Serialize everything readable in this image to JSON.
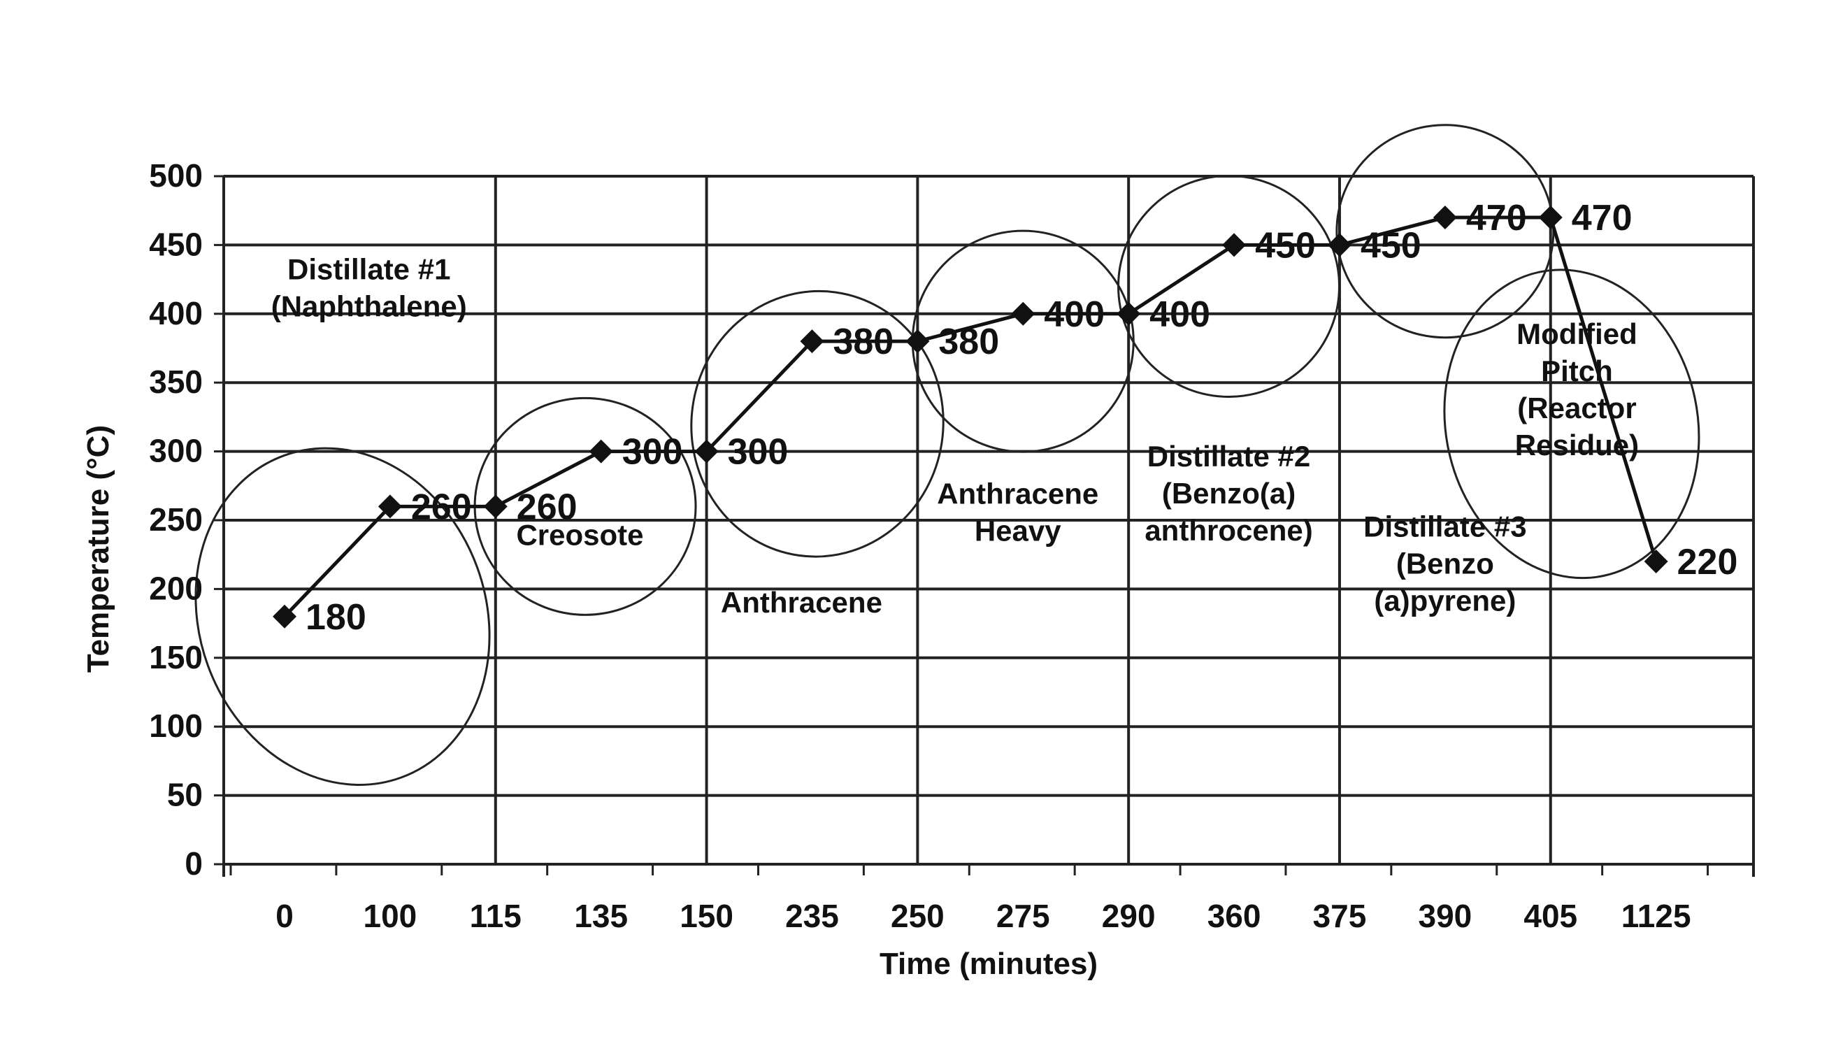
{
  "chart_data": {
    "type": "line",
    "title": "",
    "xlabel": "Time (minutes)",
    "ylabel": "Temperature (°C)",
    "ylim": [
      0,
      500
    ],
    "y_ticks": [
      "0",
      "50",
      "100",
      "150",
      "200",
      "250",
      "300",
      "350",
      "400",
      "450",
      "500"
    ],
    "grid": "horizontal and vertical lines",
    "legend": "none",
    "categories": [
      "0",
      "100",
      "115",
      "135",
      "150",
      "235",
      "250",
      "275",
      "290",
      "360",
      "375",
      "390",
      "405",
      "1125"
    ],
    "series": [
      {
        "values": [
          180,
          260,
          260,
          300,
          300,
          380,
          380,
          400,
          400,
          450,
          450,
          470,
          470,
          220
        ],
        "data_labels": [
          "180",
          "260",
          "260",
          "300",
          "300",
          "380",
          "380",
          "400",
          "400",
          "450",
          "450",
          "470",
          "470",
          "220"
        ],
        "marker": "diamond",
        "color": "#111111"
      }
    ],
    "region_labels": [
      {
        "lines": [
          "Distillate #1",
          "(Naphthalene)"
        ]
      },
      {
        "lines": [
          "Creosote"
        ]
      },
      {
        "lines": [
          "Anthracene"
        ]
      },
      {
        "lines": [
          "Anthracene",
          "Heavy"
        ]
      },
      {
        "lines": [
          "Distillate #2",
          "(Benzo(a)",
          "anthrocene)"
        ]
      },
      {
        "lines": [
          "Distillate #3",
          "(Benzo",
          "(a)pyrene)"
        ]
      },
      {
        "lines": [
          "Modified",
          "Pitch",
          "(Reactor",
          "Residue)"
        ]
      }
    ],
    "annotation_ellipses": 7
  }
}
